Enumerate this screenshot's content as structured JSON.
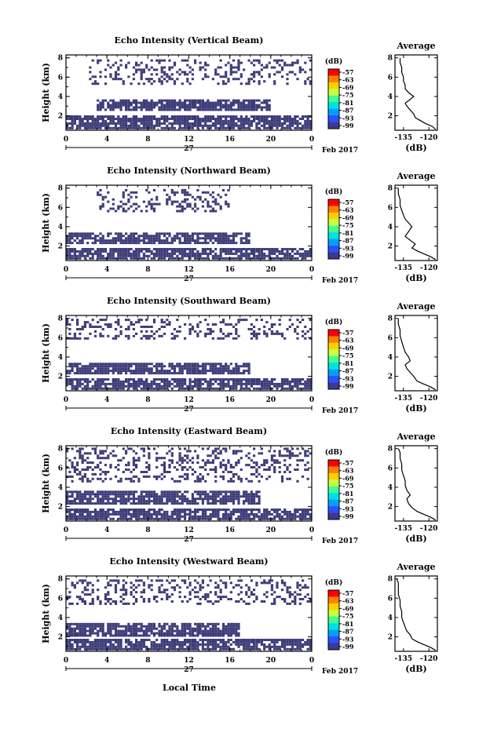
{
  "figure": {
    "xlabel": "Local Time",
    "date_label": "Feb 2017",
    "day_label": "27"
  },
  "chart_data": [
    {
      "type": "heatmap",
      "title": "Echo Intensity (Vertical Beam)",
      "xlabel": "Local Time",
      "ylabel": "Height (km)",
      "x_ticks": [
        "0",
        "4",
        "8",
        "12",
        "16",
        "20",
        "0"
      ],
      "y_ticks": [
        "2",
        "4",
        "6",
        "8"
      ],
      "xlim": [
        0,
        24
      ],
      "ylim": [
        0.5,
        8.3
      ],
      "colorbar": {
        "label": "(dB)",
        "ticks": [
          "-57",
          "-63",
          "-69",
          "-75",
          "-81",
          "-87",
          "-93",
          "-99"
        ]
      },
      "layers": [
        {
          "x": [
            0,
            24
          ],
          "y": [
            0.6,
            2.0
          ],
          "level": "dense"
        },
        {
          "x": [
            3,
            20
          ],
          "y": [
            2.5,
            3.6
          ],
          "level": "dense"
        },
        {
          "x": [
            2,
            24
          ],
          "y": [
            5.2,
            7.8
          ],
          "level": "sparse"
        }
      ],
      "profile": {
        "title": "Average",
        "xlabel": "(dB)",
        "x_ticks": [
          "-135",
          "-120"
        ],
        "y_ticks": [
          "2",
          "4",
          "6",
          "8"
        ],
        "xlim": [
          -140,
          -115
        ],
        "ylim": [
          0.5,
          8.3
        ],
        "points": [
          [
            -116,
            0.6
          ],
          [
            -118,
            0.9
          ],
          [
            -122,
            1.2
          ],
          [
            -125,
            1.5
          ],
          [
            -128,
            1.8
          ],
          [
            -129,
            2.2
          ],
          [
            -131,
            2.6
          ],
          [
            -133,
            3.0
          ],
          [
            -134,
            3.3
          ],
          [
            -131,
            3.7
          ],
          [
            -129,
            4.0
          ],
          [
            -132,
            4.4
          ],
          [
            -134,
            4.8
          ],
          [
            -134,
            5.2
          ],
          [
            -135,
            5.6
          ],
          [
            -135,
            6.0
          ],
          [
            -136,
            6.5
          ],
          [
            -136,
            7.0
          ],
          [
            -137,
            7.5
          ],
          [
            -137,
            8.0
          ]
        ]
      }
    },
    {
      "type": "heatmap",
      "title": "Echo Intensity (Northward Beam)",
      "xlabel": "Local Time",
      "ylabel": "Height (km)",
      "x_ticks": [
        "0",
        "4",
        "8",
        "12",
        "16",
        "20",
        "0"
      ],
      "y_ticks": [
        "2",
        "4",
        "6",
        "8"
      ],
      "xlim": [
        0,
        24
      ],
      "ylim": [
        0.5,
        8.3
      ],
      "colorbar": {
        "label": "(dB)",
        "ticks": [
          "-57",
          "-63",
          "-69",
          "-75",
          "-81",
          "-87",
          "-93",
          "-99"
        ]
      },
      "layers": [
        {
          "x": [
            0,
            24
          ],
          "y": [
            0.6,
            1.8
          ],
          "level": "dense"
        },
        {
          "x": [
            0,
            18
          ],
          "y": [
            2.2,
            3.3
          ],
          "level": "dense"
        },
        {
          "x": [
            3,
            16
          ],
          "y": [
            5.5,
            7.8
          ],
          "level": "sparse"
        }
      ],
      "profile": {
        "title": "Average",
        "xlabel": "(dB)",
        "x_ticks": [
          "-135",
          "-120"
        ],
        "y_ticks": [
          "2",
          "4",
          "6",
          "8"
        ],
        "xlim": [
          -140,
          -115
        ],
        "ylim": [
          0.5,
          8.3
        ],
        "points": [
          [
            -116,
            0.6
          ],
          [
            -119,
            0.9
          ],
          [
            -123,
            1.2
          ],
          [
            -127,
            1.5
          ],
          [
            -130,
            1.8
          ],
          [
            -128,
            2.2
          ],
          [
            -131,
            2.6
          ],
          [
            -134,
            3.0
          ],
          [
            -132,
            3.5
          ],
          [
            -130,
            4.0
          ],
          [
            -132,
            4.4
          ],
          [
            -134,
            4.8
          ],
          [
            -135,
            5.2
          ],
          [
            -136,
            5.7
          ],
          [
            -137,
            6.2
          ],
          [
            -137,
            6.8
          ],
          [
            -138,
            7.4
          ],
          [
            -138,
            8.0
          ]
        ]
      }
    },
    {
      "type": "heatmap",
      "title": "Echo Intensity (Southward Beam)",
      "xlabel": "Local Time",
      "ylabel": "Height (km)",
      "x_ticks": [
        "0",
        "4",
        "8",
        "12",
        "16",
        "20",
        "0"
      ],
      "y_ticks": [
        "2",
        "4",
        "6",
        "8"
      ],
      "xlim": [
        0,
        24
      ],
      "ylim": [
        0.5,
        8.3
      ],
      "colorbar": {
        "label": "(dB)",
        "ticks": [
          "-57",
          "-63",
          "-69",
          "-75",
          "-81",
          "-87",
          "-93",
          "-99"
        ]
      },
      "layers": [
        {
          "x": [
            0,
            24
          ],
          "y": [
            0.6,
            1.6
          ],
          "level": "dense"
        },
        {
          "x": [
            0,
            18
          ],
          "y": [
            2.2,
            3.4
          ],
          "level": "dense"
        },
        {
          "x": [
            0,
            24
          ],
          "y": [
            5.8,
            7.9
          ],
          "level": "sparse"
        }
      ],
      "profile": {
        "title": "Average",
        "xlabel": "(dB)",
        "x_ticks": [
          "-135",
          "-120"
        ],
        "y_ticks": [
          "2",
          "4",
          "6",
          "8"
        ],
        "xlim": [
          -140,
          -115
        ],
        "ylim": [
          0.5,
          8.3
        ],
        "points": [
          [
            -116,
            0.6
          ],
          [
            -119,
            0.9
          ],
          [
            -123,
            1.2
          ],
          [
            -127,
            1.5
          ],
          [
            -129,
            2.0
          ],
          [
            -131,
            2.4
          ],
          [
            -133,
            2.8
          ],
          [
            -134,
            3.2
          ],
          [
            -131,
            3.6
          ],
          [
            -132,
            4.0
          ],
          [
            -134,
            4.5
          ],
          [
            -135,
            5.0
          ],
          [
            -136,
            5.6
          ],
          [
            -137,
            6.2
          ],
          [
            -137,
            6.8
          ],
          [
            -138,
            7.4
          ],
          [
            -138,
            8.0
          ]
        ]
      }
    },
    {
      "type": "heatmap",
      "title": "Echo Intensity (Eastward Beam)",
      "xlabel": "Local Time",
      "ylabel": "Height (km)",
      "x_ticks": [
        "0",
        "4",
        "8",
        "12",
        "16",
        "20",
        "0"
      ],
      "y_ticks": [
        "2",
        "4",
        "6",
        "8"
      ],
      "xlim": [
        0,
        24
      ],
      "ylim": [
        0.5,
        8.3
      ],
      "colorbar": {
        "label": "(dB)",
        "ticks": [
          "-57",
          "-63",
          "-69",
          "-75",
          "-81",
          "-87",
          "-93",
          "-99"
        ]
      },
      "layers": [
        {
          "x": [
            0,
            24
          ],
          "y": [
            0.6,
            1.7
          ],
          "level": "dense"
        },
        {
          "x": [
            0,
            19
          ],
          "y": [
            2.2,
            3.6
          ],
          "level": "dense"
        },
        {
          "x": [
            0,
            24
          ],
          "y": [
            4.5,
            7.9
          ],
          "level": "sparse"
        }
      ],
      "profile": {
        "title": "Average",
        "xlabel": "(dB)",
        "x_ticks": [
          "-135",
          "-120"
        ],
        "y_ticks": [
          "2",
          "4",
          "6",
          "8"
        ],
        "xlim": [
          -140,
          -115
        ],
        "ylim": [
          0.5,
          8.3
        ],
        "points": [
          [
            -116,
            0.6
          ],
          [
            -119,
            0.9
          ],
          [
            -123,
            1.2
          ],
          [
            -127,
            1.5
          ],
          [
            -130,
            1.9
          ],
          [
            -132,
            2.3
          ],
          [
            -133,
            2.8
          ],
          [
            -131,
            3.2
          ],
          [
            -133,
            3.7
          ],
          [
            -134,
            4.2
          ],
          [
            -134,
            4.7
          ],
          [
            -135,
            5.2
          ],
          [
            -136,
            5.8
          ],
          [
            -136,
            6.4
          ],
          [
            -137,
            7.0
          ],
          [
            -137,
            7.6
          ],
          [
            -138,
            8.0
          ]
        ]
      }
    },
    {
      "type": "heatmap",
      "title": "Echo Intensity (Westward Beam)",
      "xlabel": "Local Time",
      "ylabel": "Height (km)",
      "x_ticks": [
        "0",
        "4",
        "8",
        "12",
        "16",
        "20",
        "0"
      ],
      "y_ticks": [
        "2",
        "4",
        "6",
        "8"
      ],
      "xlim": [
        0,
        24
      ],
      "ylim": [
        0.5,
        8.3
      ],
      "colorbar": {
        "label": "(dB)",
        "ticks": [
          "-57",
          "-63",
          "-69",
          "-75",
          "-81",
          "-87",
          "-93",
          "-99"
        ]
      },
      "layers": [
        {
          "x": [
            0,
            24
          ],
          "y": [
            0.6,
            1.6
          ],
          "level": "dense"
        },
        {
          "x": [
            0,
            17
          ],
          "y": [
            2.0,
            3.3
          ],
          "level": "dense"
        },
        {
          "x": [
            0,
            24
          ],
          "y": [
            5.3,
            7.9
          ],
          "level": "sparse"
        }
      ],
      "profile": {
        "title": "Average",
        "xlabel": "(dB)",
        "x_ticks": [
          "-135",
          "-120"
        ],
        "y_ticks": [
          "2",
          "4",
          "6",
          "8"
        ],
        "xlim": [
          -140,
          -115
        ],
        "ylim": [
          0.5,
          8.3
        ],
        "points": [
          [
            -116,
            0.6
          ],
          [
            -119,
            0.9
          ],
          [
            -123,
            1.2
          ],
          [
            -127,
            1.5
          ],
          [
            -130,
            1.8
          ],
          [
            -131,
            2.2
          ],
          [
            -133,
            2.6
          ],
          [
            -134,
            3.0
          ],
          [
            -135,
            3.5
          ],
          [
            -136,
            4.0
          ],
          [
            -136,
            4.6
          ],
          [
            -137,
            5.2
          ],
          [
            -137,
            5.8
          ],
          [
            -138,
            6.4
          ],
          [
            -138,
            7.0
          ],
          [
            -138,
            7.6
          ],
          [
            -139,
            8.0
          ]
        ]
      }
    }
  ],
  "colors": {
    "echo": "#3b3b78",
    "colorbar": [
      "#ff0000",
      "#ff7f00",
      "#ffd000",
      "#c8ff40",
      "#40ff90",
      "#00e0e0",
      "#00a0ff",
      "#2b50ff",
      "#3a3a90"
    ]
  }
}
